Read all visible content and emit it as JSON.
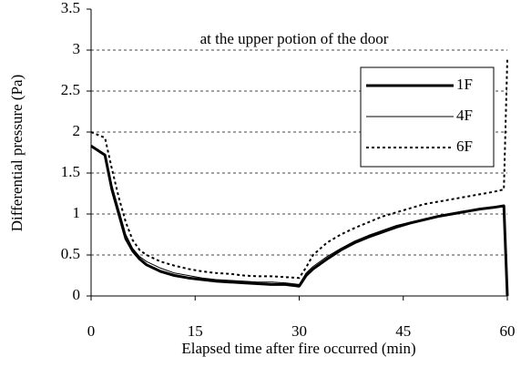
{
  "chart_data": {
    "type": "line",
    "annotation": "at the upper potion of the door",
    "x_label": "Elapsed time after fire occurred (min)",
    "y_label": "Differential pressure (Pa)",
    "x": [
      0,
      2,
      3,
      4,
      5,
      6,
      7,
      8,
      10,
      12,
      14,
      16,
      18,
      20,
      22,
      24,
      26,
      28,
      30,
      31,
      32,
      34,
      36,
      38,
      40,
      42,
      44,
      46,
      48,
      50,
      52,
      54,
      56,
      58,
      59.5,
      60
    ],
    "series": [
      {
        "name": "1F",
        "color": "#000000",
        "linewidth": 3,
        "linestyle": "solid",
        "values": [
          1.83,
          1.72,
          1.3,
          1.0,
          0.7,
          0.55,
          0.45,
          0.38,
          0.3,
          0.25,
          0.22,
          0.2,
          0.18,
          0.17,
          0.16,
          0.15,
          0.14,
          0.14,
          0.12,
          0.25,
          0.33,
          0.45,
          0.56,
          0.65,
          0.72,
          0.78,
          0.84,
          0.89,
          0.93,
          0.97,
          1.0,
          1.03,
          1.06,
          1.08,
          1.1,
          0
        ]
      },
      {
        "name": "4F",
        "color": "#000000",
        "linewidth": 1,
        "linestyle": "solid",
        "values": [
          1.83,
          1.72,
          1.35,
          1.05,
          0.75,
          0.58,
          0.48,
          0.42,
          0.34,
          0.28,
          0.25,
          0.22,
          0.2,
          0.19,
          0.18,
          0.17,
          0.17,
          0.16,
          0.14,
          0.28,
          0.36,
          0.48,
          0.58,
          0.67,
          0.74,
          0.8,
          0.86,
          0.9,
          0.94,
          0.98,
          1.01,
          1.04,
          1.06,
          1.08,
          1.1,
          0.18
        ]
      },
      {
        "name": "6F",
        "color": "#000000",
        "linewidth": 2,
        "linestyle": "dotted",
        "values": [
          2.0,
          1.93,
          1.55,
          1.2,
          0.9,
          0.68,
          0.56,
          0.5,
          0.42,
          0.37,
          0.33,
          0.3,
          0.28,
          0.27,
          0.25,
          0.24,
          0.24,
          0.23,
          0.22,
          0.35,
          0.5,
          0.65,
          0.75,
          0.83,
          0.9,
          0.97,
          1.02,
          1.07,
          1.12,
          1.15,
          1.18,
          1.21,
          1.24,
          1.27,
          1.3,
          2.9
        ]
      }
    ],
    "xlim": [
      0,
      60
    ],
    "xticks": [
      0,
      15,
      30,
      45,
      60
    ],
    "ylim": [
      0,
      3.5
    ],
    "yticks": [
      0,
      0.5,
      1,
      1.5,
      2,
      2.5,
      3,
      3.5
    ],
    "grid": true,
    "legend": "upper right"
  }
}
